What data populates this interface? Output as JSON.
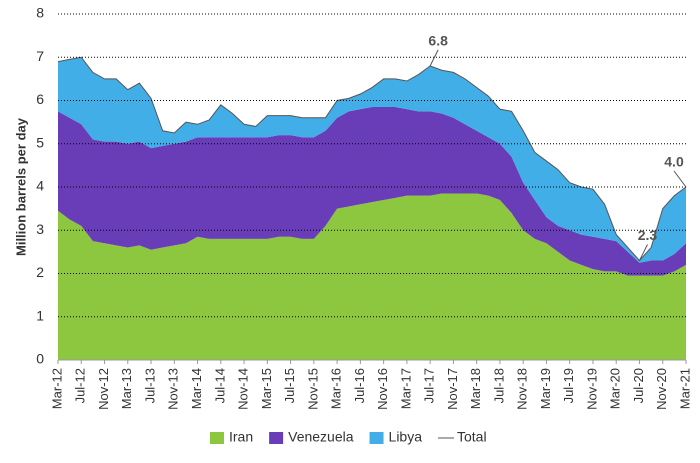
{
  "chart_data": {
    "type": "stacked-area",
    "y_label": "Million barrels per day",
    "categories": [
      "Mar-12",
      null,
      "Jul-12",
      null,
      "Nov-12",
      null,
      "Mar-13",
      null,
      "Jul-13",
      null,
      "Nov-13",
      null,
      "Mar-14",
      null,
      "Jul-14",
      null,
      "Nov-14",
      null,
      "Mar-15",
      null,
      "Jul-15",
      null,
      "Nov-15",
      null,
      "Mar-16",
      null,
      "Jul-16",
      null,
      "Nov-16",
      null,
      "Mar-17",
      null,
      "Jul-17",
      null,
      "Nov-17",
      null,
      "Mar-18",
      null,
      "Jul-18",
      null,
      "Nov-18",
      null,
      "Mar-19",
      null,
      "Jul-19",
      null,
      "Nov-19",
      null,
      "Mar-20",
      null,
      "Jul-20",
      null,
      "Nov-20",
      null,
      "Mar-21"
    ],
    "series": [
      {
        "name": "Iran",
        "color": "#8dc63f",
        "values": [
          3.45,
          3.25,
          3.1,
          2.75,
          2.7,
          2.65,
          2.6,
          2.65,
          2.55,
          2.6,
          2.65,
          2.7,
          2.85,
          2.8,
          2.8,
          2.8,
          2.8,
          2.8,
          2.8,
          2.85,
          2.85,
          2.8,
          2.8,
          3.1,
          3.5,
          3.55,
          3.6,
          3.65,
          3.7,
          3.75,
          3.8,
          3.8,
          3.8,
          3.85,
          3.85,
          3.85,
          3.85,
          3.8,
          3.7,
          3.4,
          3.0,
          2.8,
          2.7,
          2.5,
          2.3,
          2.2,
          2.1,
          2.05,
          2.05,
          1.95,
          1.95,
          1.95,
          1.95,
          2.05,
          2.2
        ]
      },
      {
        "name": "Venezuela",
        "color": "#6a3db8",
        "values": [
          2.3,
          2.35,
          2.35,
          2.35,
          2.35,
          2.4,
          2.4,
          2.4,
          2.35,
          2.35,
          2.35,
          2.35,
          2.3,
          2.35,
          2.35,
          2.35,
          2.35,
          2.35,
          2.35,
          2.35,
          2.35,
          2.35,
          2.35,
          2.2,
          2.1,
          2.2,
          2.2,
          2.2,
          2.15,
          2.1,
          2.0,
          1.95,
          1.95,
          1.85,
          1.75,
          1.6,
          1.45,
          1.35,
          1.3,
          1.3,
          1.1,
          0.9,
          0.6,
          0.6,
          0.7,
          0.7,
          0.75,
          0.75,
          0.7,
          0.55,
          0.3,
          0.35,
          0.35,
          0.4,
          0.5
        ]
      },
      {
        "name": "Libya",
        "color": "#41aee8",
        "values": [
          1.15,
          1.35,
          1.55,
          1.55,
          1.45,
          1.45,
          1.25,
          1.35,
          1.15,
          0.35,
          0.25,
          0.45,
          0.3,
          0.4,
          0.75,
          0.55,
          0.3,
          0.25,
          0.5,
          0.45,
          0.45,
          0.45,
          0.45,
          0.3,
          0.4,
          0.3,
          0.35,
          0.45,
          0.65,
          0.65,
          0.65,
          0.85,
          1.05,
          1.0,
          1.05,
          1.05,
          1.0,
          0.95,
          0.8,
          1.05,
          1.2,
          1.1,
          1.3,
          1.3,
          1.1,
          1.1,
          1.1,
          0.8,
          0.15,
          0.1,
          0.05,
          0.3,
          1.2,
          1.35,
          1.3
        ]
      },
      {
        "name": "Total",
        "color": "#555555",
        "line": true,
        "values": [
          6.9,
          6.95,
          7.0,
          6.65,
          6.5,
          6.5,
          6.25,
          6.4,
          6.05,
          5.3,
          5.25,
          5.5,
          5.45,
          5.55,
          5.9,
          5.7,
          5.45,
          5.4,
          5.65,
          5.65,
          5.65,
          5.6,
          5.6,
          5.6,
          6.0,
          6.05,
          6.15,
          6.3,
          6.5,
          6.5,
          6.45,
          6.6,
          6.8,
          6.7,
          6.65,
          6.5,
          6.3,
          6.1,
          5.8,
          5.75,
          5.3,
          4.8,
          4.6,
          4.4,
          4.1,
          4.0,
          3.95,
          3.6,
          2.9,
          2.6,
          2.3,
          2.6,
          3.5,
          3.8,
          4.0
        ]
      }
    ],
    "annotations": [
      {
        "x": "Jul-17",
        "text": "6.8"
      },
      {
        "x": "Jul-20",
        "text": "2.3"
      },
      {
        "x": "Mar-21",
        "text": "4.0"
      }
    ],
    "ylim": [
      0,
      8
    ],
    "yticks": [
      0,
      1,
      2,
      3,
      4,
      5,
      6,
      7,
      8
    ],
    "grid": true,
    "legend": "bottom"
  }
}
